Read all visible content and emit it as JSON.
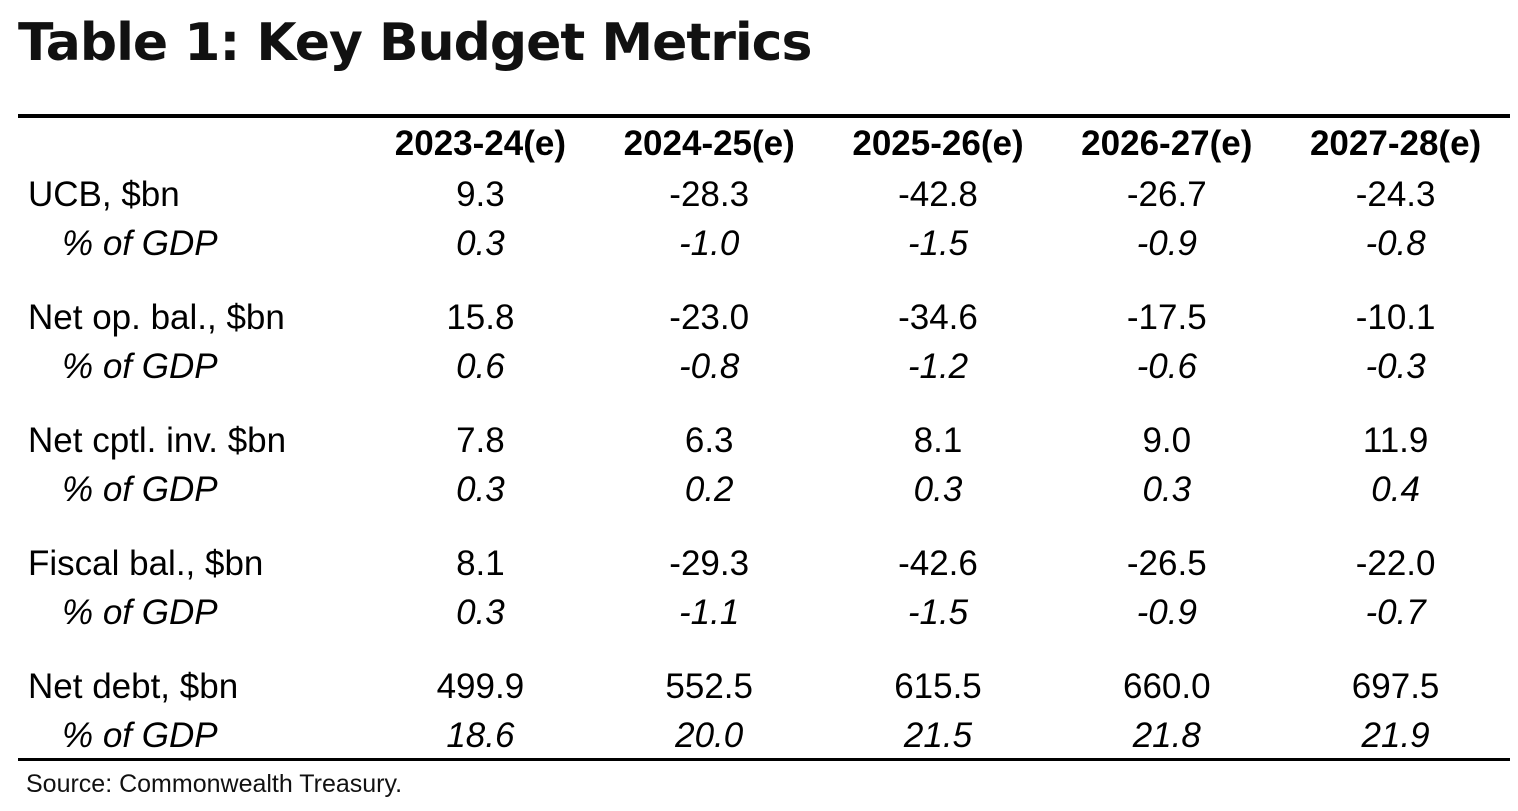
{
  "title": "Table 1: Key Budget Metrics",
  "table": {
    "headers": [
      "2023-24(e)",
      "2024-25(e)",
      "2025-26(e)",
      "2026-27(e)",
      "2027-28(e)"
    ],
    "rows": [
      {
        "label": "UCB, $bn",
        "values": [
          "9.3",
          "-28.3",
          "-42.8",
          "-26.7",
          "-24.3"
        ]
      },
      {
        "label": "% of GDP",
        "values": [
          "0.3",
          "-1.0",
          "-1.5",
          "-0.9",
          "-0.8"
        ]
      },
      {
        "label": "Net op. bal., $bn",
        "values": [
          "15.8",
          "-23.0",
          "-34.6",
          "-17.5",
          "-10.1"
        ]
      },
      {
        "label": "% of GDP",
        "values": [
          "0.6",
          "-0.8",
          "-1.2",
          "-0.6",
          "-0.3"
        ]
      },
      {
        "label": "Net cptl. inv. $bn",
        "values": [
          "7.8",
          "6.3",
          "8.1",
          "9.0",
          "11.9"
        ]
      },
      {
        "label": "% of GDP",
        "values": [
          "0.3",
          "0.2",
          "0.3",
          "0.3",
          "0.4"
        ]
      },
      {
        "label": "Fiscal bal., $bn",
        "values": [
          "8.1",
          "-29.3",
          "-42.6",
          "-26.5",
          "-22.0"
        ]
      },
      {
        "label": "% of GDP",
        "values": [
          "0.3",
          "-1.1",
          "-1.5",
          "-0.9",
          "-0.7"
        ]
      },
      {
        "label": "Net debt, $bn",
        "values": [
          "499.9",
          "552.5",
          "615.5",
          "660.0",
          "697.5"
        ]
      },
      {
        "label": "% of GDP",
        "values": [
          "18.6",
          "20.0",
          "21.5",
          "21.8",
          "21.9"
        ]
      }
    ]
  },
  "source": "Source: Commonwealth Treasury."
}
